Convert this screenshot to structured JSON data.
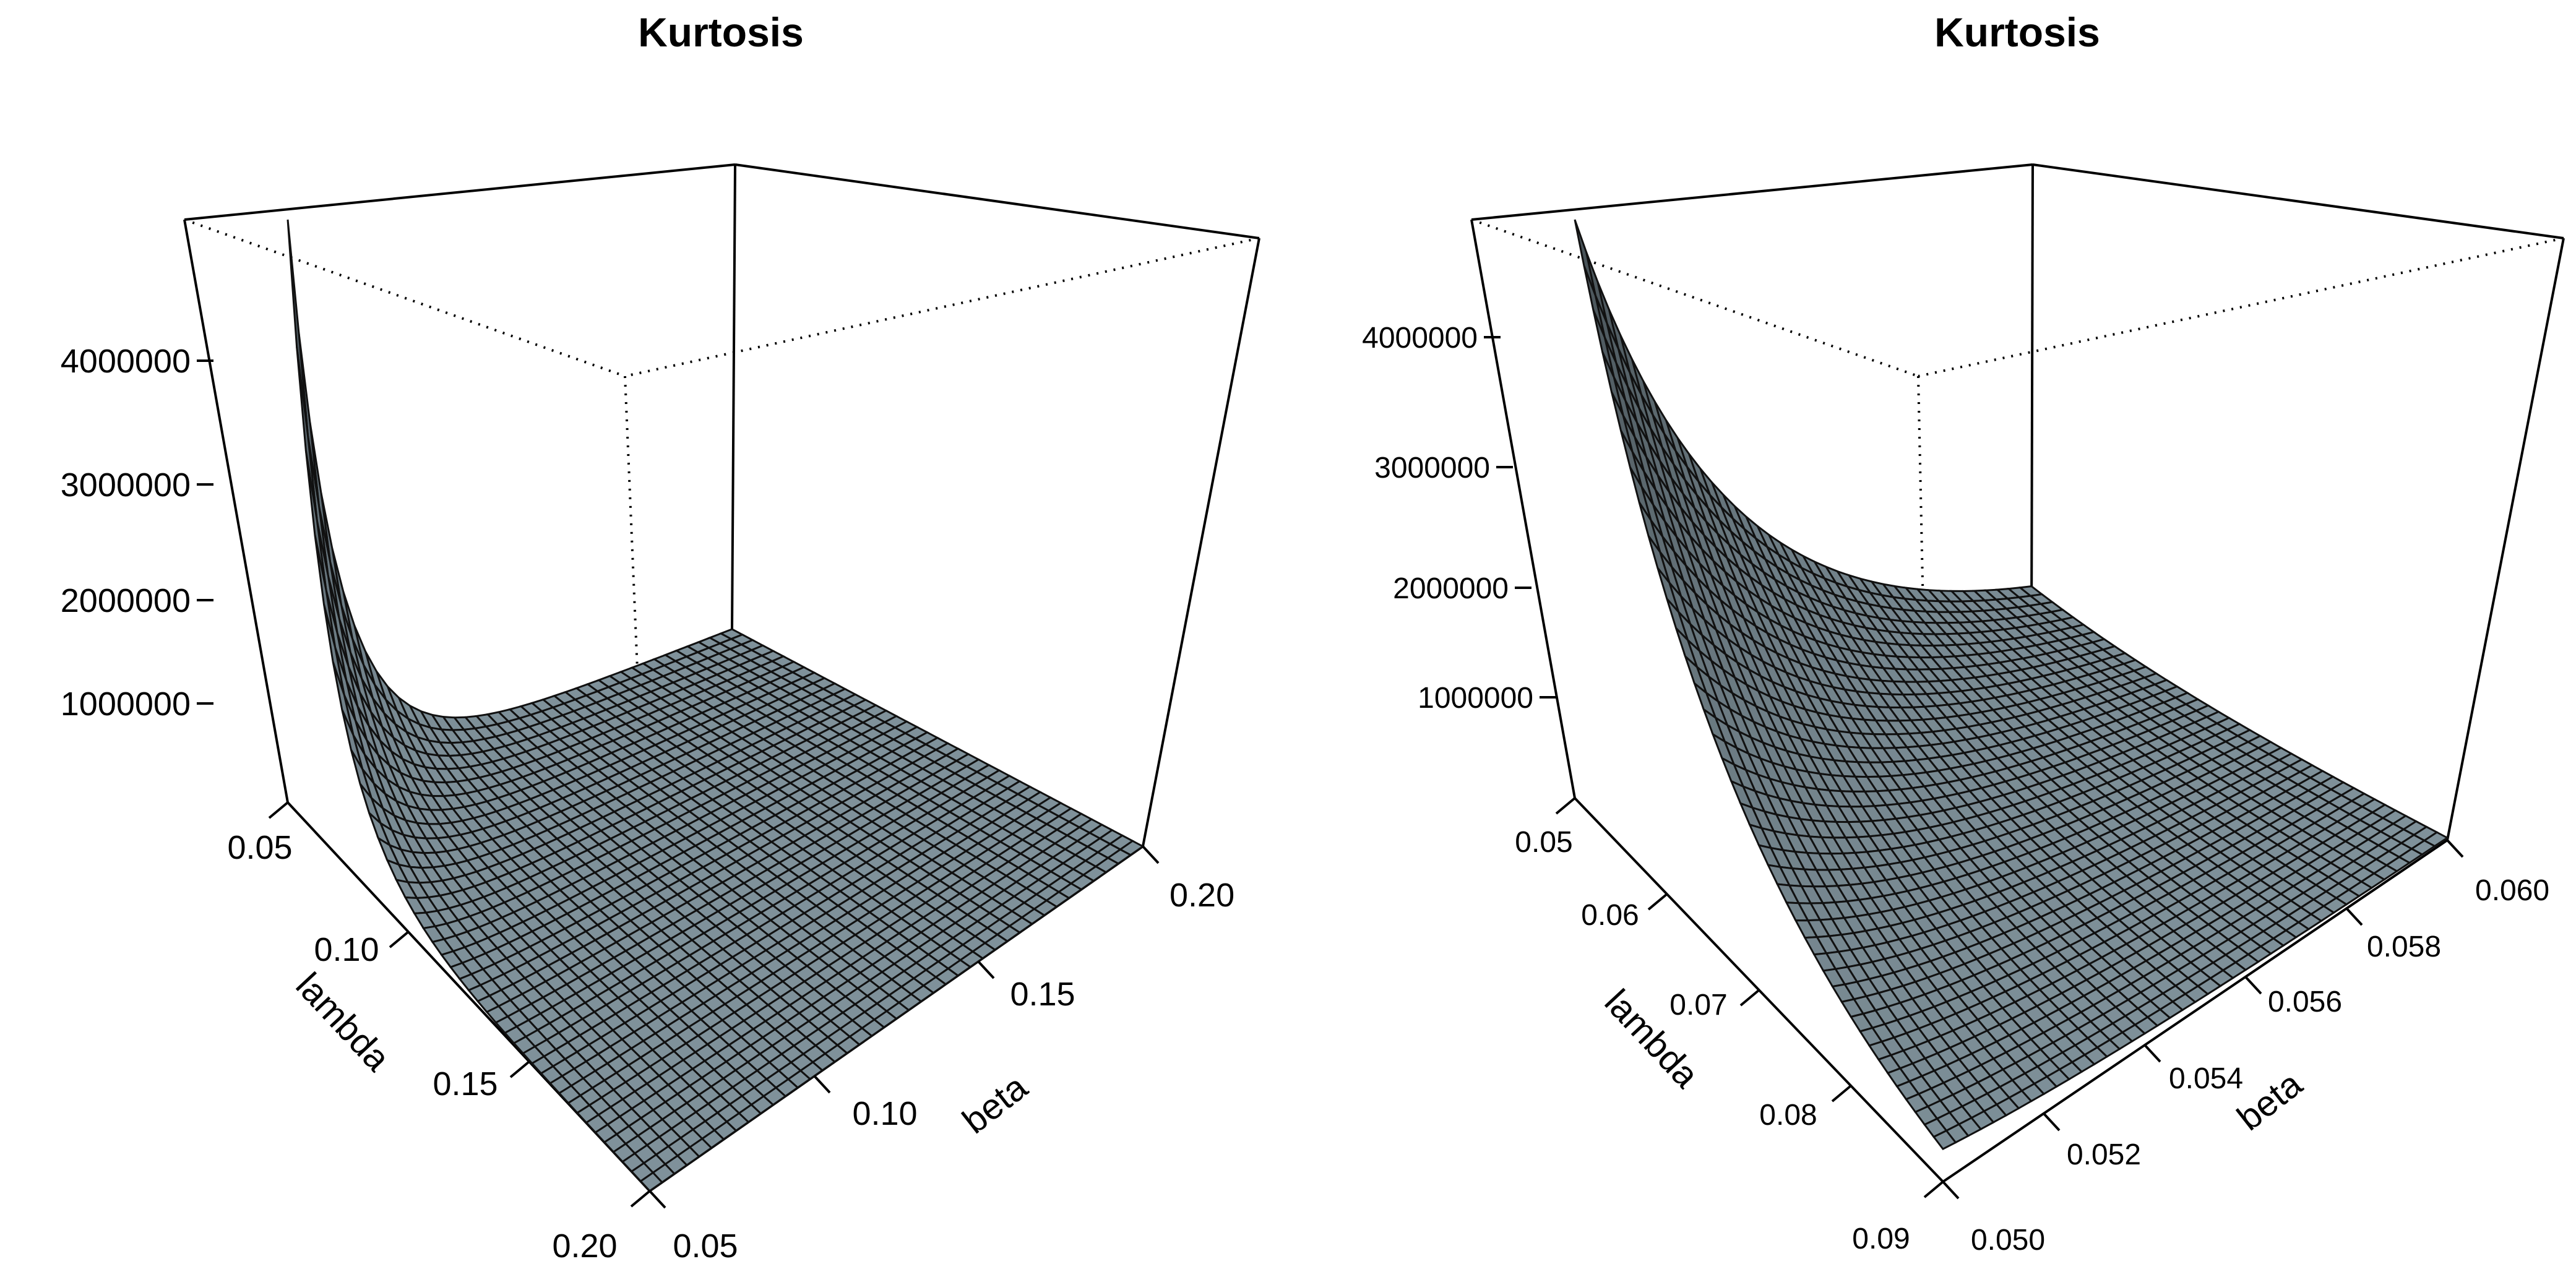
{
  "chart_data": [
    {
      "type": "surface",
      "title": "Kurtosis",
      "xlabel": "lambda",
      "ylabel": "beta",
      "zlabel": "",
      "xlim": [
        0.05,
        0.2
      ],
      "ylim": [
        0.05,
        0.2
      ],
      "zlim": [
        0,
        5000000
      ],
      "x_ticks": [
        "0.05",
        "0.10",
        "0.15",
        "0.20"
      ],
      "y_ticks": [
        "0.05",
        "0.10",
        "0.15",
        "0.20"
      ],
      "z_ticks": [
        "1000000",
        "2000000",
        "3000000",
        "4000000"
      ],
      "grid": [
        40,
        40
      ],
      "surface_color": "#7f919a",
      "peak": {
        "lambda": 0.05,
        "beta": 0.05,
        "kurtosis": 5000000
      }
    },
    {
      "type": "surface",
      "title": "Kurtosis",
      "xlabel": "lambda",
      "ylabel": "beta",
      "zlabel": "",
      "xlim": [
        0.05,
        0.09
      ],
      "ylim": [
        0.05,
        0.06
      ],
      "zlim": [
        0,
        5000000
      ],
      "x_ticks": [
        "0.05",
        "0.06",
        "0.07",
        "0.08",
        "0.09"
      ],
      "y_ticks": [
        "0.050",
        "0.052",
        "0.054",
        "0.056",
        "0.058",
        "0.060"
      ],
      "z_ticks": [
        "1000000",
        "2000000",
        "3000000",
        "4000000"
      ],
      "grid": [
        40,
        40
      ],
      "surface_color": "#7f919a",
      "peak": {
        "lambda": 0.05,
        "beta": 0.05,
        "kurtosis": 5000000
      }
    }
  ]
}
